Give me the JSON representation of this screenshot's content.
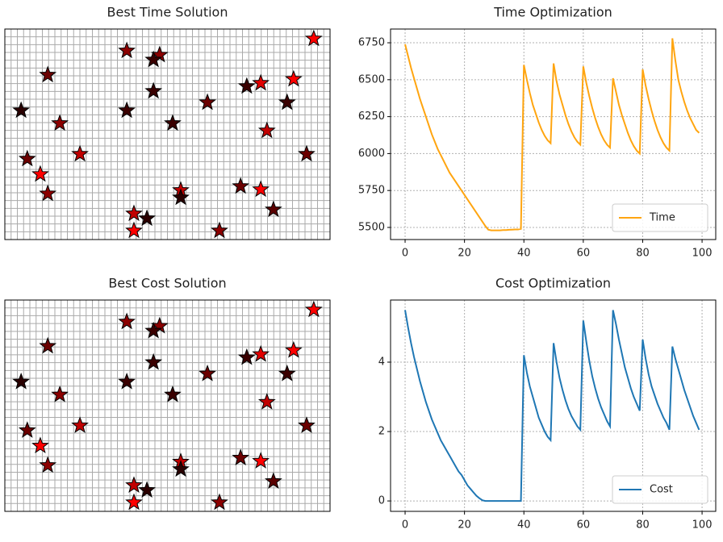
{
  "chart_data": [
    {
      "type": "scatter",
      "title": "Best Time Solution",
      "x": [
        95.0,
        37.5,
        47.6,
        45.7,
        13.2,
        88.8,
        78.7,
        74.4,
        45.7,
        5.0,
        37.5,
        62.3,
        86.8,
        16.9,
        51.6,
        80.6,
        6.9,
        23.1,
        92.8,
        10.9,
        13.2,
        54.1,
        54.1,
        72.5,
        78.7,
        82.6,
        39.7,
        43.7,
        39.7,
        66.0
      ],
      "y": [
        95.4,
        89.7,
        87.7,
        85.4,
        78.2,
        76.2,
        74.3,
        72.8,
        70.5,
        61.3,
        61.3,
        65.1,
        65.1,
        55.2,
        55.2,
        51.7,
        38.3,
        40.6,
        40.6,
        31.0,
        21.8,
        23.4,
        19.9,
        25.3,
        23.8,
        14.2,
        12.3,
        10.0,
        4.2,
        4.2
      ],
      "colors": [
        "#ff0000",
        "#8b0000",
        "#8b0000",
        "#3a0000",
        "#6b0000",
        "#ff0000",
        "#e00000",
        "#3a0000",
        "#3a0000",
        "#2a0000",
        "#3a0000",
        "#6b0000",
        "#3a0000",
        "#8b0000",
        "#3a0000",
        "#c00000",
        "#6b0000",
        "#c00000",
        "#6b0000",
        "#ff0000",
        "#8b0000",
        "#c00000",
        "#2a0000",
        "#6b0000",
        "#ff0000",
        "#5a0000",
        "#c00000",
        "#2a0000",
        "#ff0000",
        "#8b0000"
      ],
      "xlim": [
        0,
        100
      ],
      "ylim": [
        0,
        100
      ],
      "grid": true
    },
    {
      "type": "line",
      "title": "Time Optimization",
      "x": [
        0,
        1,
        2,
        3,
        4,
        5,
        6,
        7,
        8,
        9,
        10,
        11,
        12,
        13,
        14,
        15,
        16,
        17,
        18,
        19,
        20,
        21,
        22,
        23,
        24,
        25,
        26,
        27,
        28,
        29,
        30,
        31,
        32,
        33,
        34,
        35,
        36,
        37,
        38,
        39,
        40,
        41,
        42,
        43,
        44,
        45,
        46,
        47,
        48,
        49,
        50,
        51,
        52,
        53,
        54,
        55,
        56,
        57,
        58,
        59,
        60,
        61,
        62,
        63,
        64,
        65,
        66,
        67,
        68,
        69,
        70,
        71,
        72,
        73,
        74,
        75,
        76,
        77,
        78,
        79,
        80,
        81,
        82,
        83,
        84,
        85,
        86,
        87,
        88,
        89,
        90,
        91,
        92,
        93,
        94,
        95,
        96,
        97,
        98,
        99
      ],
      "series": [
        {
          "name": "Time",
          "color": "#ffa510",
          "values": [
            6740,
            6660,
            6580,
            6510,
            6440,
            6370,
            6310,
            6250,
            6190,
            6130,
            6080,
            6030,
            5990,
            5950,
            5910,
            5870,
            5840,
            5810,
            5780,
            5750,
            5720,
            5690,
            5660,
            5630,
            5600,
            5570,
            5540,
            5510,
            5485,
            5480,
            5480,
            5480,
            5480,
            5482,
            5482,
            5484,
            5485,
            5486,
            5486,
            5490,
            6600,
            6500,
            6410,
            6330,
            6270,
            6210,
            6160,
            6120,
            6090,
            6070,
            6610,
            6490,
            6400,
            6330,
            6260,
            6200,
            6150,
            6110,
            6080,
            6060,
            6590,
            6480,
            6390,
            6310,
            6240,
            6180,
            6130,
            6090,
            6060,
            6040,
            6510,
            6420,
            6330,
            6260,
            6200,
            6140,
            6090,
            6050,
            6020,
            6000,
            6570,
            6460,
            6370,
            6290,
            6220,
            6160,
            6110,
            6070,
            6040,
            6020,
            6780,
            6630,
            6500,
            6420,
            6350,
            6290,
            6240,
            6200,
            6160,
            6140
          ]
        }
      ],
      "xlim": [
        -4.9,
        104.6
      ],
      "ylim": [
        5418,
        6843
      ],
      "xticks": [
        0,
        20,
        40,
        60,
        80,
        100
      ],
      "yticks": [
        5500,
        5750,
        6000,
        6250,
        6500,
        6750
      ],
      "grid": true,
      "legend": "lower right"
    },
    {
      "type": "scatter",
      "title": "Best Cost Solution",
      "x": [
        95.0,
        37.5,
        47.6,
        45.7,
        13.2,
        88.8,
        78.7,
        74.4,
        45.7,
        5.0,
        37.5,
        62.3,
        86.8,
        16.9,
        51.6,
        80.6,
        6.9,
        23.1,
        92.8,
        10.9,
        13.2,
        54.1,
        54.1,
        72.5,
        78.7,
        82.6,
        39.7,
        43.7,
        39.7,
        66.0
      ],
      "y": [
        95.4,
        89.7,
        87.7,
        85.4,
        78.2,
        76.2,
        74.3,
        72.8,
        70.5,
        61.3,
        61.3,
        65.1,
        65.1,
        55.2,
        55.2,
        51.7,
        38.3,
        40.6,
        40.6,
        31.0,
        21.8,
        23.4,
        19.9,
        25.3,
        23.8,
        14.2,
        12.3,
        10.0,
        4.2,
        4.2
      ],
      "colors": [
        "#ff0000",
        "#8b0000",
        "#8b0000",
        "#3a0000",
        "#6b0000",
        "#ff0000",
        "#e00000",
        "#3a0000",
        "#3a0000",
        "#2a0000",
        "#3a0000",
        "#6b0000",
        "#3a0000",
        "#8b0000",
        "#3a0000",
        "#c00000",
        "#6b0000",
        "#c00000",
        "#6b0000",
        "#ff0000",
        "#8b0000",
        "#c00000",
        "#2a0000",
        "#6b0000",
        "#ff0000",
        "#5a0000",
        "#c00000",
        "#2a0000",
        "#ff0000",
        "#8b0000"
      ],
      "xlim": [
        0,
        100
      ],
      "ylim": [
        0,
        100
      ],
      "grid": true
    },
    {
      "type": "line",
      "title": "Cost Optimization",
      "x": [
        0,
        1,
        2,
        3,
        4,
        5,
        6,
        7,
        8,
        9,
        10,
        11,
        12,
        13,
        14,
        15,
        16,
        17,
        18,
        19,
        20,
        21,
        22,
        23,
        24,
        25,
        26,
        27,
        28,
        29,
        30,
        31,
        32,
        33,
        34,
        35,
        36,
        37,
        38,
        39,
        40,
        41,
        42,
        43,
        44,
        45,
        46,
        47,
        48,
        49,
        50,
        51,
        52,
        53,
        54,
        55,
        56,
        57,
        58,
        59,
        60,
        61,
        62,
        63,
        64,
        65,
        66,
        67,
        68,
        69,
        70,
        71,
        72,
        73,
        74,
        75,
        76,
        77,
        78,
        79,
        80,
        81,
        82,
        83,
        84,
        85,
        86,
        87,
        88,
        89,
        90,
        91,
        92,
        93,
        94,
        95,
        96,
        97,
        98,
        99
      ],
      "series": [
        {
          "name": "Cost",
          "color": "#1f77b4",
          "values": [
            5.5,
            5.0,
            4.55,
            4.15,
            3.8,
            3.45,
            3.15,
            2.85,
            2.6,
            2.35,
            2.15,
            1.95,
            1.75,
            1.6,
            1.45,
            1.3,
            1.15,
            1.0,
            0.85,
            0.75,
            0.6,
            0.45,
            0.35,
            0.25,
            0.15,
            0.08,
            0.02,
            0,
            0,
            0,
            0,
            0,
            0,
            0,
            0,
            0,
            0,
            0,
            0,
            0,
            4.2,
            3.7,
            3.3,
            3.0,
            2.7,
            2.4,
            2.2,
            2.0,
            1.85,
            1.75,
            4.55,
            4.0,
            3.55,
            3.2,
            2.9,
            2.65,
            2.45,
            2.3,
            2.15,
            2.05,
            5.2,
            4.6,
            4.05,
            3.6,
            3.25,
            2.95,
            2.7,
            2.5,
            2.3,
            2.15,
            5.5,
            5.1,
            4.65,
            4.25,
            3.85,
            3.55,
            3.25,
            3.0,
            2.8,
            2.6,
            4.65,
            4.1,
            3.65,
            3.3,
            3.05,
            2.8,
            2.6,
            2.4,
            2.25,
            2.05,
            4.45,
            4.1,
            3.8,
            3.5,
            3.2,
            2.95,
            2.7,
            2.45,
            2.25,
            2.05
          ]
        }
      ],
      "xlim": [
        -4.9,
        104.6
      ],
      "ylim": [
        -0.3,
        5.79
      ],
      "xticks": [
        0,
        20,
        40,
        60,
        80,
        100
      ],
      "yticks": [
        0,
        2,
        4
      ],
      "grid": true,
      "legend": "lower right"
    }
  ]
}
